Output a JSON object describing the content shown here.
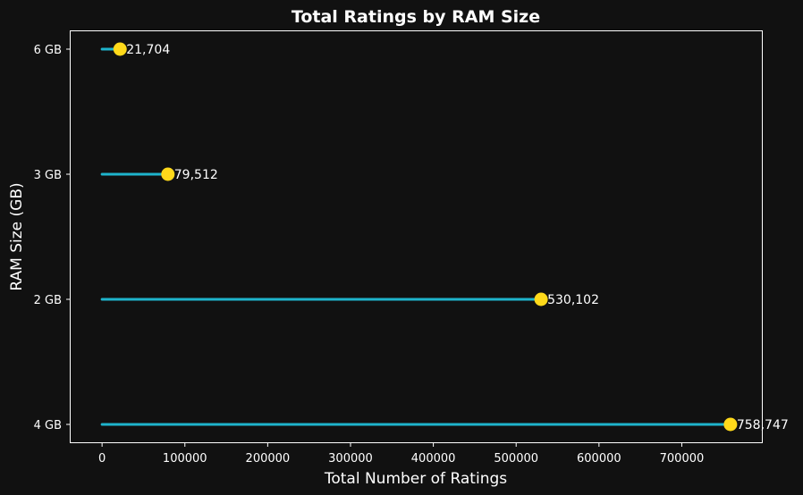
{
  "chart_data": {
    "type": "lollipop",
    "title": "Total Ratings by RAM Size",
    "xlabel": "Total Number of Ratings",
    "ylabel": "RAM Size (GB)",
    "categories": [
      "4 GB",
      "2 GB",
      "3 GB",
      "6 GB"
    ],
    "values": [
      758747,
      530102,
      79512,
      21704
    ],
    "value_labels": [
      "758,747",
      "530,102",
      "79,512",
      "21,704"
    ],
    "xlim": [
      -37937,
      796684
    ],
    "xticks": [
      0,
      100000,
      200000,
      300000,
      400000,
      500000,
      600000,
      700000
    ],
    "xtick_labels": [
      "0",
      "100000",
      "200000",
      "300000",
      "400000",
      "500000",
      "600000",
      "700000"
    ],
    "grid": false,
    "legend": "none",
    "colors": {
      "background": "#111111",
      "stem": "#1eb4cc",
      "marker": "#ffd91a",
      "text": "#ffffff",
      "axes": "#ffffff"
    }
  }
}
